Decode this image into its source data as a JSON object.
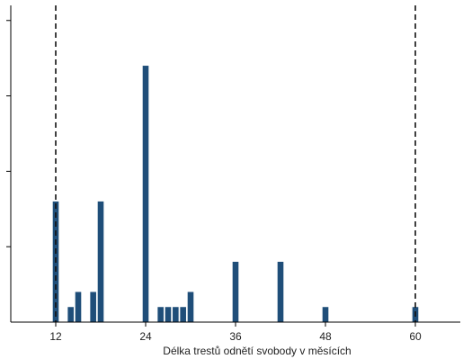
{
  "chart_data": {
    "type": "bar",
    "title": "",
    "xlabel": "Délka trestů odnětí svobody v měsících",
    "ylabel": "",
    "xlim": [
      6,
      66
    ],
    "ylim": [
      0,
      4.2
    ],
    "x_ticks": [
      12,
      24,
      36,
      48,
      60
    ],
    "reference_lines": [
      12,
      60
    ],
    "bar_color": "#1f4e79",
    "x": [
      12,
      14,
      15,
      17,
      18,
      24,
      26,
      27,
      28,
      29,
      30,
      36,
      42,
      48,
      60
    ],
    "values": [
      1.6,
      0.2,
      0.4,
      0.4,
      1.6,
      3.4,
      0.2,
      0.2,
      0.2,
      0.2,
      0.4,
      0.8,
      0.8,
      0.2,
      0.2
    ]
  }
}
